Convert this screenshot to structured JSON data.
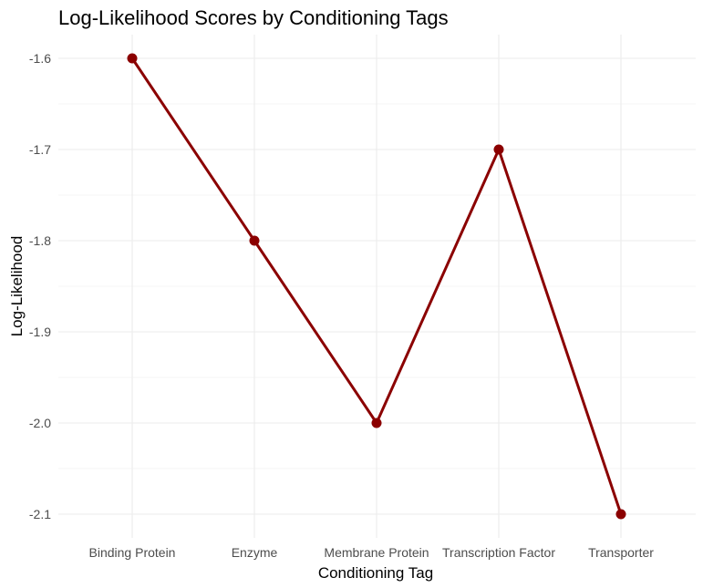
{
  "chart_data": {
    "type": "line",
    "title": "Log-Likelihood Scores by Conditioning Tags",
    "xlabel": "Conditioning Tag",
    "ylabel": "Log-Likelihood",
    "categories": [
      "Binding Protein",
      "Enzyme",
      "Membrane Protein",
      "Transcription Factor",
      "Transporter"
    ],
    "values": [
      -1.6,
      -1.8,
      -2.0,
      -1.7,
      -2.1
    ],
    "yticks": [
      "-1.6",
      "-1.7",
      "-1.8",
      "-1.9",
      "-2.0",
      "-2.1"
    ],
    "ylim": [
      -2.125,
      -1.575
    ],
    "grid": true,
    "legend": "none",
    "colors": {
      "series": "#8b0000",
      "grid": "#ebebeb"
    }
  }
}
